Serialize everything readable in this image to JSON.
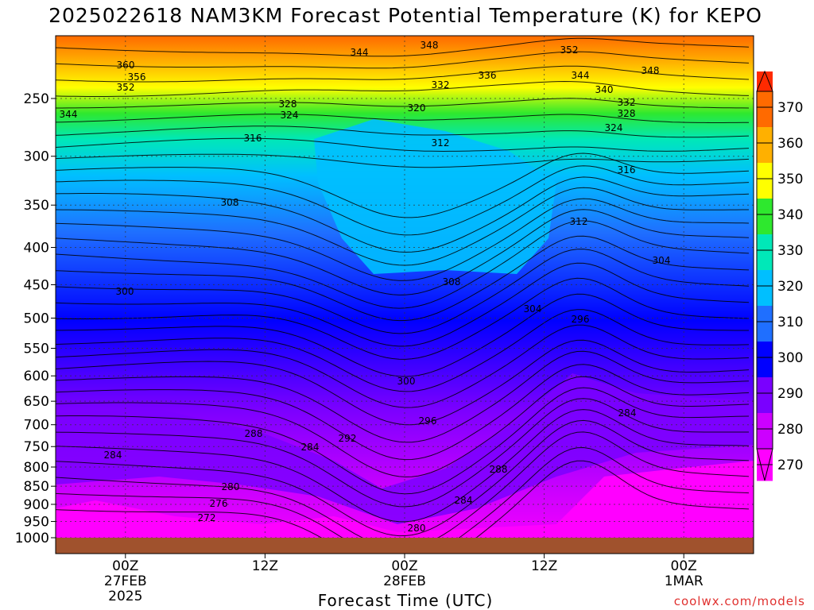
{
  "chart_data": {
    "type": "heatmap",
    "title": "2025022618 NAM3KM Forecast Potential Temperature (K) for KEPO",
    "xlabel": "Forecast Time (UTC)",
    "ylabel": "",
    "credit": "coolwx.com/models",
    "y_scale": "pressure (log)",
    "ylim": [
      1000,
      200
    ],
    "y_ticks": [
      "250",
      "300",
      "350",
      "400",
      "450",
      "500",
      "550",
      "600",
      "650",
      "700",
      "750",
      "800",
      "850",
      "900",
      "950",
      "1000"
    ],
    "x_ticks": [
      {
        "lines": [
          "00Z",
          "27FEB",
          "2025"
        ],
        "hour": 6
      },
      {
        "lines": [
          "12Z"
        ],
        "hour": 18
      },
      {
        "lines": [
          "00Z",
          "28FEB"
        ],
        "hour": 30
      },
      {
        "lines": [
          "12Z"
        ],
        "hour": 42
      },
      {
        "lines": [
          "00Z",
          "1MAR"
        ],
        "hour": 54
      }
    ],
    "xlim": [
      0,
      60
    ],
    "colorbar": {
      "ticks": [
        "270",
        "280",
        "290",
        "300",
        "310",
        "320",
        "330",
        "340",
        "350",
        "360",
        "370"
      ],
      "colors": [
        "#ff00ff",
        "#cc00ff",
        "#7a00ff",
        "#0000ff",
        "#1f6fff",
        "#00bfff",
        "#00e8b8",
        "#2ee82e",
        "#ffff00",
        "#ffb000",
        "#ff6a00",
        "#ff2a00"
      ]
    },
    "contour_labels": [
      "360",
      "356",
      "352",
      "344",
      "344",
      "348",
      "352",
      "348",
      "344",
      "340",
      "336",
      "332",
      "332",
      "328",
      "328",
      "324",
      "324",
      "320",
      "316",
      "316",
      "312",
      "312",
      "308",
      "308",
      "304",
      "304",
      "300",
      "300",
      "296",
      "296",
      "292",
      "288",
      "288",
      "284",
      "284",
      "284",
      "284",
      "280",
      "280",
      "276",
      "272"
    ],
    "surface_color": "#a0522d",
    "grid": true
  }
}
